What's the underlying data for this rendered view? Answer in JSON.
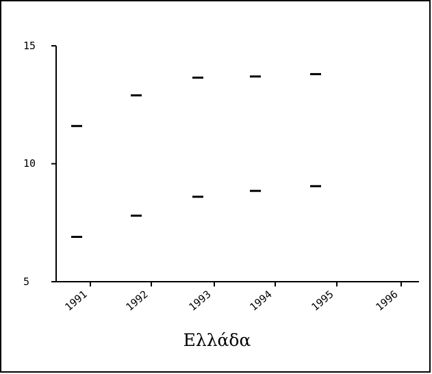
{
  "chart_data": {
    "type": "scatter",
    "title": "",
    "xlabel": "Ελλάδα",
    "ylabel": "",
    "categories": [
      "1991",
      "1992",
      "1993",
      "1994",
      "1995",
      "1996"
    ],
    "yticks": [
      "15",
      "10",
      "5"
    ],
    "ylim": [
      5,
      15
    ],
    "grid": false,
    "marker": "dash",
    "series": [
      {
        "values": [
          11.6,
          12.9,
          13.65,
          13.7,
          13.8,
          null
        ]
      },
      {
        "values": [
          6.9,
          7.8,
          8.6,
          8.85,
          9.05,
          null
        ]
      }
    ]
  }
}
